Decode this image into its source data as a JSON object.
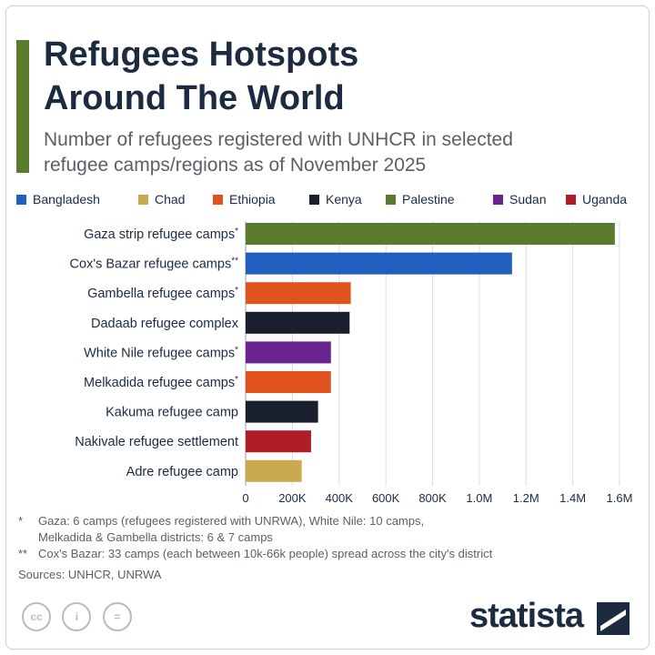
{
  "header": {
    "title_line1": "Refugees Hotspots",
    "title_line2": "Around The World",
    "subtitle_line1": "Number of refugees registered with UNHCR in selected",
    "subtitle_line2": "refugee camps/regions as of November 2025"
  },
  "legend": [
    {
      "name": "Bangladesh",
      "color": "#1f5fbd"
    },
    {
      "name": "Chad",
      "color": "#c9aa4e"
    },
    {
      "name": "Ethiopia",
      "color": "#e0531f"
    },
    {
      "name": "Kenya",
      "color": "#1a1f2e"
    },
    {
      "name": "Palestine",
      "color": "#5a7a2c"
    },
    {
      "name": "Sudan",
      "color": "#6a2490"
    },
    {
      "name": "Uganda",
      "color": "#b01d27"
    }
  ],
  "chart_data": {
    "type": "bar",
    "orientation": "horizontal",
    "xlim": [
      0,
      1600000
    ],
    "grid": true,
    "legend_placement": "top",
    "x_ticks": [
      {
        "value": 0,
        "label": "0"
      },
      {
        "value": 200000,
        "label": "200K"
      },
      {
        "value": 400000,
        "label": "400K"
      },
      {
        "value": 600000,
        "label": "600K"
      },
      {
        "value": 800000,
        "label": "800K"
      },
      {
        "value": 1000000,
        "label": "1.0M"
      },
      {
        "value": 1200000,
        "label": "1.2M"
      },
      {
        "value": 1400000,
        "label": "1.4M"
      },
      {
        "value": 1600000,
        "label": "1.6M"
      }
    ],
    "bars": [
      {
        "label": "Gaza strip refugee camps",
        "marker": "*",
        "value": 1580000,
        "country": "Palestine",
        "color": "#5a7a2c"
      },
      {
        "label": "Cox's Bazar refugee camps",
        "marker": "**",
        "value": 1140000,
        "country": "Bangladesh",
        "color": "#1f5fbd"
      },
      {
        "label": "Gambella refugee camps",
        "marker": "*",
        "value": 450000,
        "country": "Ethiopia",
        "color": "#e0531f"
      },
      {
        "label": "Dadaab refugee complex",
        "marker": "",
        "value": 445000,
        "country": "Kenya",
        "color": "#1a1f2e"
      },
      {
        "label": "White Nile refugee camps",
        "marker": "*",
        "value": 365000,
        "country": "Sudan",
        "color": "#6a2490"
      },
      {
        "label": "Melkadida refugee camps",
        "marker": "*",
        "value": 365000,
        "country": "Ethiopia",
        "color": "#e0531f"
      },
      {
        "label": "Kakuma refugee camp",
        "marker": "",
        "value": 310000,
        "country": "Kenya",
        "color": "#1a1f2e"
      },
      {
        "label": "Nakivale refugee settlement",
        "marker": "",
        "value": 280000,
        "country": "Uganda",
        "color": "#b01d27"
      },
      {
        "label": "Adre refugee camp",
        "marker": "",
        "value": 240000,
        "country": "Chad",
        "color": "#c9aa4e"
      }
    ]
  },
  "notes": {
    "note1_mark": "*",
    "note1_line1": "Gaza: 6 camps (refugees registered with UNRWA), White Nile: 10 camps,",
    "note1_line2": "Melkadida & Gambella districts: 6 & 7 camps",
    "note2_mark": "**",
    "note2_line1": "Cox's Bazar: 33 camps (each between 10k-66k people) spread across the city's district",
    "sources": "Sources: UNHCR, UNRWA"
  },
  "footer": {
    "cc_icons": [
      "cc-icon",
      "attribution-icon",
      "no-derivatives-icon"
    ],
    "cc_glyphs": [
      "cc",
      "i",
      "="
    ],
    "brand": "statista"
  }
}
